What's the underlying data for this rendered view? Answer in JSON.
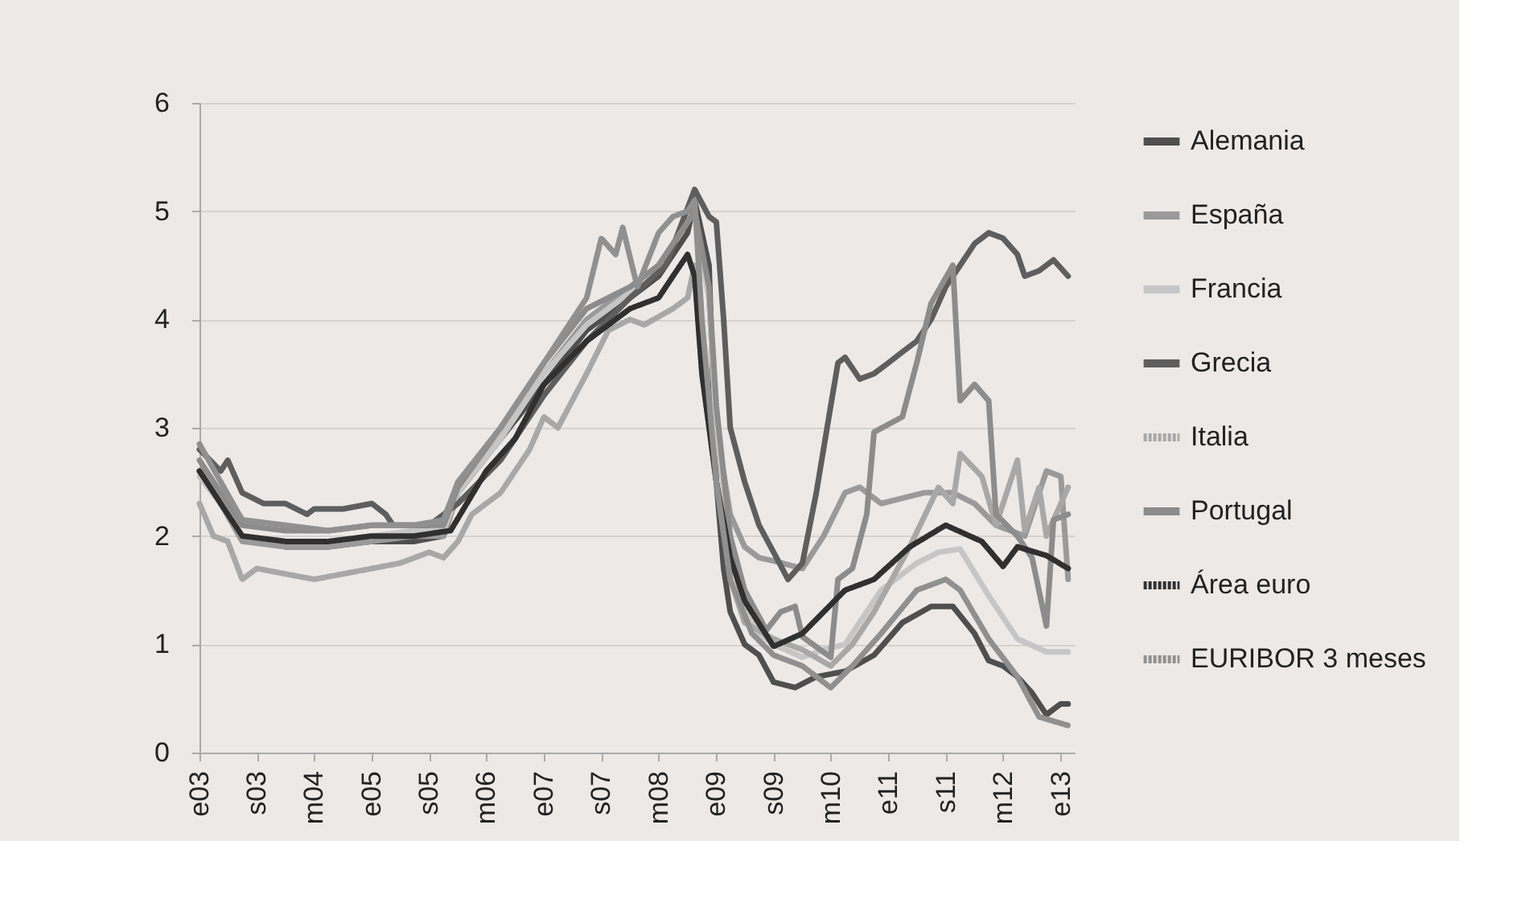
{
  "chart_data": {
    "type": "line",
    "xlim": [
      "2003-01",
      "2013-03"
    ],
    "ylim": [
      0,
      6
    ],
    "yticks": [
      0,
      1,
      2,
      3,
      4,
      5,
      6
    ],
    "xticks": [
      {
        "value": "2003-01",
        "label": "e03"
      },
      {
        "value": "2003-09",
        "label": "s03"
      },
      {
        "value": "2004-05",
        "label": "m04"
      },
      {
        "value": "2005-01",
        "label": "e05"
      },
      {
        "value": "2005-09",
        "label": "s05"
      },
      {
        "value": "2006-05",
        "label": "m06"
      },
      {
        "value": "2007-01",
        "label": "e07"
      },
      {
        "value": "2007-09",
        "label": "s07"
      },
      {
        "value": "2008-05",
        "label": "m08"
      },
      {
        "value": "2009-01",
        "label": "e09"
      },
      {
        "value": "2009-09",
        "label": "s09"
      },
      {
        "value": "2010-05",
        "label": "m10"
      },
      {
        "value": "2011-01",
        "label": "e11"
      },
      {
        "value": "2011-09",
        "label": "s11"
      },
      {
        "value": "2012-05",
        "label": "m12"
      },
      {
        "value": "2013-01",
        "label": "e13"
      }
    ],
    "grid": "y",
    "legend": "right",
    "series": [
      {
        "name": "Alemania",
        "color": "#4f4f4f",
        "line_style": "solid",
        "x": [
          "2003-01",
          "2003-04",
          "2003-07",
          "2004-01",
          "2004-07",
          "2005-01",
          "2005-07",
          "2005-11",
          "2006-01",
          "2006-07",
          "2007-01",
          "2007-07",
          "2008-01",
          "2008-05",
          "2008-09",
          "2008-10",
          "2008-12",
          "2009-01",
          "2009-02",
          "2009-03",
          "2009-05",
          "2009-07",
          "2009-09",
          "2009-12",
          "2010-03",
          "2010-07",
          "2010-11",
          "2011-03",
          "2011-07",
          "2011-10",
          "2012-01",
          "2012-03",
          "2012-05",
          "2012-07",
          "2012-09",
          "2012-11",
          "2012-12",
          "2013-01",
          "2013-02"
        ],
        "values": [
          2.6,
          2.3,
          2.0,
          1.9,
          1.9,
          1.95,
          1.95,
          2.0,
          2.4,
          2.9,
          3.4,
          3.9,
          4.2,
          4.4,
          4.8,
          5.1,
          4.5,
          2.5,
          1.7,
          1.3,
          1.0,
          0.9,
          0.65,
          0.6,
          0.7,
          0.75,
          0.9,
          1.2,
          1.35,
          1.35,
          1.1,
          0.85,
          0.8,
          0.7,
          0.55,
          0.35,
          0.4,
          0.45,
          0.45
        ]
      },
      {
        "name": "España",
        "color": "#9a9a9a",
        "line_style": "solid",
        "x": [
          "2003-01",
          "2003-04",
          "2003-07",
          "2004-01",
          "2004-07",
          "2005-01",
          "2005-07",
          "2005-11",
          "2006-01",
          "2006-07",
          "2007-01",
          "2007-07",
          "2008-01",
          "2008-05",
          "2008-09",
          "2008-10",
          "2008-12",
          "2009-01",
          "2009-03",
          "2009-05",
          "2009-07",
          "2009-09",
          "2010-01",
          "2010-04",
          "2010-07",
          "2010-09",
          "2010-12",
          "2011-03",
          "2011-06",
          "2011-10",
          "2012-01",
          "2012-04",
          "2012-08",
          "2012-11",
          "2013-01",
          "2013-02"
        ],
        "values": [
          2.6,
          2.3,
          1.95,
          1.9,
          1.9,
          1.95,
          2.0,
          2.0,
          2.4,
          2.9,
          3.5,
          4.0,
          4.3,
          4.5,
          4.9,
          5.0,
          4.2,
          3.0,
          2.2,
          1.9,
          1.8,
          1.77,
          1.7,
          2.0,
          2.4,
          2.45,
          2.3,
          2.35,
          2.4,
          2.4,
          2.3,
          2.1,
          2.0,
          2.6,
          2.55,
          1.6
        ]
      },
      {
        "name": "Francia",
        "color": "#c6c6c6",
        "line_style": "solid",
        "x": [
          "2003-01",
          "2003-04",
          "2003-07",
          "2004-01",
          "2004-07",
          "2005-01",
          "2005-07",
          "2005-11",
          "2006-01",
          "2006-07",
          "2007-01",
          "2007-07",
          "2008-01",
          "2008-05",
          "2008-09",
          "2008-10",
          "2008-12",
          "2009-01",
          "2009-03",
          "2009-05",
          "2009-07",
          "2009-09",
          "2010-01",
          "2010-04",
          "2010-07",
          "2010-12",
          "2011-05",
          "2011-08",
          "2011-11",
          "2012-03",
          "2012-07",
          "2012-11",
          "2013-02"
        ],
        "values": [
          2.55,
          2.3,
          2.0,
          1.95,
          1.95,
          2.0,
          2.05,
          2.05,
          2.4,
          2.9,
          3.5,
          3.95,
          4.25,
          4.5,
          4.9,
          5.0,
          4.2,
          3.0,
          1.9,
          1.3,
          1.1,
          1.0,
          0.88,
          0.95,
          1.0,
          1.5,
          1.75,
          1.85,
          1.88,
          1.45,
          1.05,
          0.93,
          0.93
        ]
      },
      {
        "name": "Grecia",
        "color": "#5e5e5e",
        "line_style": "solid",
        "x": [
          "2003-01",
          "2003-04",
          "2003-05",
          "2003-07",
          "2003-10",
          "2004-01",
          "2004-04",
          "2004-05",
          "2004-09",
          "2005-01",
          "2005-03",
          "2005-04",
          "2005-09",
          "2006-01",
          "2006-07",
          "2007-01",
          "2007-07",
          "2008-01",
          "2008-06",
          "2008-10",
          "2008-12",
          "2009-01",
          "2009-02",
          "2009-03",
          "2009-05",
          "2009-07",
          "2009-09",
          "2009-11",
          "2010-01",
          "2010-03",
          "2010-05",
          "2010-06",
          "2010-07",
          "2010-09",
          "2010-11",
          "2011-01",
          "2011-03",
          "2011-05",
          "2011-07",
          "2011-09",
          "2011-11",
          "2012-01",
          "2012-03",
          "2012-05",
          "2012-07",
          "2012-08",
          "2012-10",
          "2012-12",
          "2013-02"
        ],
        "values": [
          2.8,
          2.6,
          2.7,
          2.4,
          2.3,
          2.3,
          2.2,
          2.25,
          2.25,
          2.3,
          2.2,
          2.1,
          2.1,
          2.3,
          2.7,
          3.3,
          3.8,
          4.2,
          4.5,
          5.2,
          4.95,
          4.9,
          4.0,
          3.0,
          2.5,
          2.1,
          1.85,
          1.6,
          1.75,
          2.4,
          3.2,
          3.6,
          3.65,
          3.45,
          3.5,
          3.6,
          3.7,
          3.8,
          4.0,
          4.3,
          4.5,
          4.7,
          4.8,
          4.75,
          4.6,
          4.4,
          4.45,
          4.55,
          4.4
        ]
      },
      {
        "name": "Italia",
        "color": "#a8a8a8",
        "line_style": "dotted",
        "x": [
          "2003-01",
          "2003-03",
          "2003-05",
          "2003-07",
          "2003-09",
          "2004-01",
          "2004-05",
          "2004-09",
          "2005-01",
          "2005-05",
          "2005-07",
          "2005-09",
          "2005-11",
          "2006-01",
          "2006-03",
          "2006-07",
          "2006-11",
          "2007-01",
          "2007-03",
          "2007-07",
          "2007-10",
          "2008-01",
          "2008-03",
          "2008-07",
          "2008-09",
          "2008-10",
          "2008-11",
          "2009-01",
          "2009-03",
          "2009-05",
          "2009-09",
          "2010-01",
          "2010-05",
          "2010-08",
          "2010-11",
          "2011-04",
          "2011-08",
          "2011-10",
          "2011-11",
          "2012-02",
          "2012-04",
          "2012-07",
          "2012-08",
          "2012-10",
          "2012-11",
          "2013-02"
        ],
        "values": [
          2.3,
          2.0,
          1.95,
          1.6,
          1.7,
          1.65,
          1.6,
          1.65,
          1.7,
          1.75,
          1.8,
          1.85,
          1.8,
          1.95,
          2.2,
          2.4,
          2.8,
          3.1,
          3.0,
          3.5,
          3.9,
          4.0,
          3.95,
          4.1,
          4.2,
          4.5,
          3.5,
          2.5,
          1.6,
          1.2,
          1.05,
          0.95,
          0.8,
          1.0,
          1.3,
          1.9,
          2.45,
          2.3,
          2.76,
          2.55,
          2.1,
          2.7,
          2.05,
          2.45,
          2.0,
          2.45
        ]
      },
      {
        "name": "Portugal",
        "color": "#8c8c8c",
        "line_style": "solid",
        "x": [
          "2003-01",
          "2003-04",
          "2003-07",
          "2004-01",
          "2004-07",
          "2005-01",
          "2005-07",
          "2005-11",
          "2006-01",
          "2006-07",
          "2007-01",
          "2007-07",
          "2008-01",
          "2008-05",
          "2008-09",
          "2008-10",
          "2008-12",
          "2009-01",
          "2009-03",
          "2009-05",
          "2009-08",
          "2009-10",
          "2009-12",
          "2010-01",
          "2010-05",
          "2010-06",
          "2010-08",
          "2010-10",
          "2010-11",
          "2011-03",
          "2011-05",
          "2011-07",
          "2011-10",
          "2011-11",
          "2012-01",
          "2012-03",
          "2012-04",
          "2012-07",
          "2012-09",
          "2012-11",
          "2012-12",
          "2013-02"
        ],
        "values": [
          2.7,
          2.4,
          2.1,
          2.05,
          2.05,
          2.1,
          2.1,
          2.1,
          2.45,
          3.0,
          3.6,
          4.1,
          4.3,
          4.5,
          4.9,
          5.0,
          4.3,
          3.2,
          2.0,
          1.5,
          1.13,
          1.3,
          1.35,
          1.07,
          0.88,
          1.6,
          1.7,
          2.2,
          2.96,
          3.1,
          3.6,
          4.15,
          4.5,
          3.25,
          3.4,
          3.25,
          2.2,
          2.0,
          1.8,
          1.17,
          2.15,
          2.2
        ]
      },
      {
        "name": "Área euro",
        "color": "#303030",
        "line_style": "dotted",
        "x": [
          "2003-01",
          "2003-04",
          "2003-07",
          "2004-01",
          "2004-07",
          "2005-01",
          "2005-07",
          "2005-12",
          "2006-05",
          "2006-09",
          "2007-01",
          "2007-07",
          "2008-01",
          "2008-05",
          "2008-07",
          "2008-09",
          "2008-10",
          "2008-11",
          "2009-01",
          "2009-03",
          "2009-05",
          "2009-09",
          "2010-01",
          "2010-07",
          "2010-11",
          "2011-04",
          "2011-09",
          "2012-02",
          "2012-05",
          "2012-07",
          "2012-11",
          "2013-02"
        ],
        "values": [
          2.6,
          2.3,
          2.0,
          1.95,
          1.95,
          2.0,
          2.0,
          2.05,
          2.6,
          2.9,
          3.4,
          3.8,
          4.1,
          4.2,
          4.4,
          4.6,
          4.4,
          3.5,
          2.5,
          1.8,
          1.4,
          0.98,
          1.1,
          1.5,
          1.6,
          1.9,
          2.1,
          1.95,
          1.72,
          1.9,
          1.82,
          1.7
        ]
      },
      {
        "name": "EURIBOR 3 meses",
        "color": "#909090",
        "line_style": "dotted",
        "x": [
          "2003-01",
          "2003-04",
          "2003-07",
          "2004-01",
          "2004-07",
          "2005-01",
          "2005-07",
          "2005-11",
          "2006-01",
          "2006-07",
          "2007-01",
          "2007-07",
          "2007-09",
          "2007-11",
          "2007-12",
          "2008-02",
          "2008-05",
          "2008-07",
          "2008-09",
          "2008-10",
          "2008-11",
          "2009-01",
          "2009-03",
          "2009-06",
          "2009-09",
          "2010-01",
          "2010-05",
          "2010-08",
          "2010-12",
          "2011-05",
          "2011-09",
          "2011-11",
          "2012-03",
          "2012-07",
          "2012-10",
          "2013-02"
        ],
        "values": [
          2.85,
          2.5,
          2.15,
          2.1,
          2.05,
          2.1,
          2.1,
          2.15,
          2.5,
          3.0,
          3.6,
          4.2,
          4.75,
          4.6,
          4.85,
          4.3,
          4.8,
          4.95,
          5.0,
          5.1,
          4.0,
          2.5,
          1.6,
          1.1,
          0.9,
          0.8,
          0.6,
          0.8,
          1.1,
          1.5,
          1.6,
          1.5,
          1.05,
          0.7,
          0.33,
          0.25
        ]
      }
    ]
  }
}
